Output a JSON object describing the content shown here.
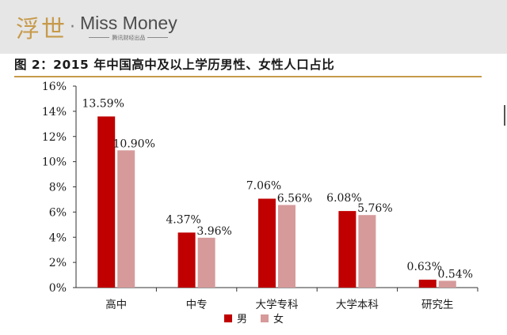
{
  "logo": {
    "chinese": "浮世",
    "dot": "·",
    "english": "Miss Money",
    "sub": "腾讯财经出品"
  },
  "chart_data": {
    "type": "bar",
    "title": "图 2：2015 年中国高中及以上学历男性、女性人口占比",
    "categories": [
      "高中",
      "中专",
      "大学专科",
      "大学本科",
      "研究生"
    ],
    "series": [
      {
        "name": "男",
        "color": "#c00000",
        "values": [
          13.59,
          4.37,
          7.06,
          6.08,
          0.63
        ],
        "labels": [
          "13.59%",
          "4.37%",
          "7.06%",
          "6.08%",
          "0.63%"
        ]
      },
      {
        "name": "女",
        "color": "#d69a9a",
        "values": [
          10.9,
          3.96,
          6.56,
          5.76,
          0.54
        ],
        "labels": [
          "10.90%",
          "3.96%",
          "6.56%",
          "5.76%",
          "0.54%"
        ]
      }
    ],
    "ylim": [
      0,
      16
    ],
    "yticks": [
      "0%",
      "2%",
      "4%",
      "6%",
      "8%",
      "10%",
      "12%",
      "14%",
      "16%"
    ],
    "grid": false,
    "legend": "bottom-center",
    "xlabel": "",
    "ylabel": ""
  }
}
